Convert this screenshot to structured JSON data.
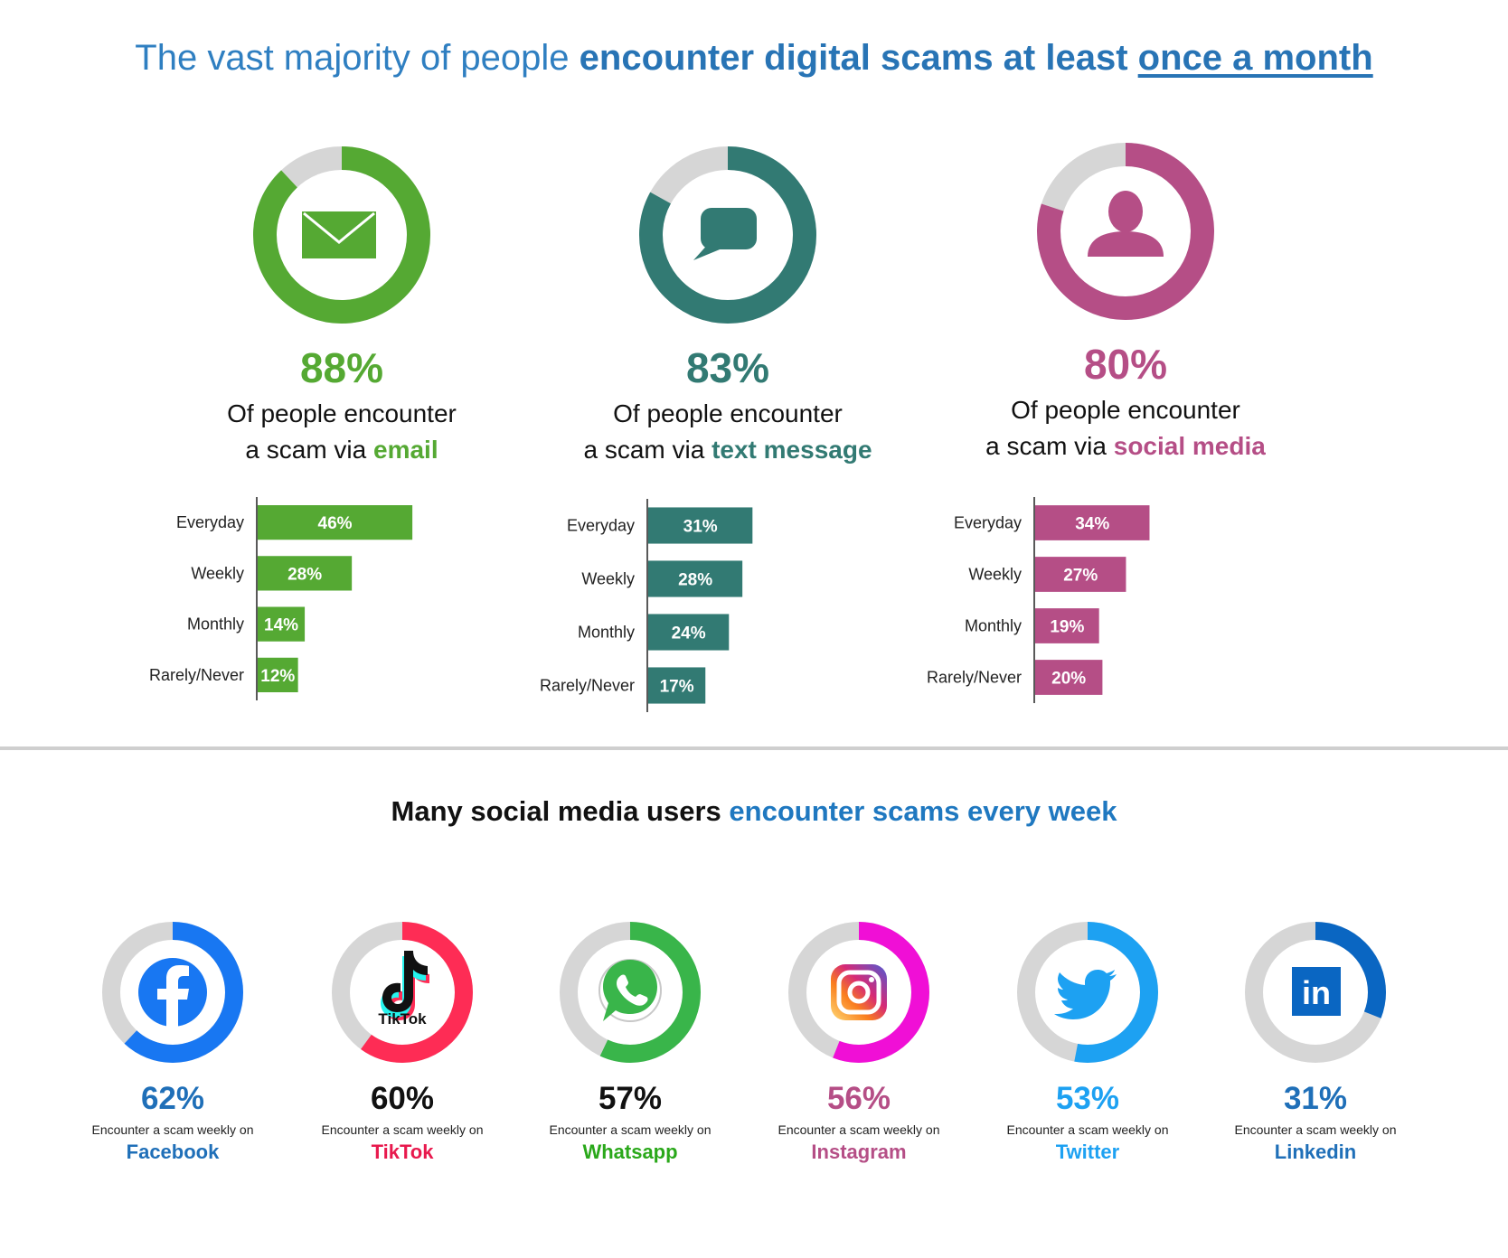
{
  "headline": {
    "lead": "The vast majority of people ",
    "bold": "encounter digital scams at least ",
    "underline": "once a month"
  },
  "subheadline": {
    "lead": "Many social media users ",
    "bold": "encounter scams every week"
  },
  "colors": {
    "email": "#55a933",
    "text": "#327a73",
    "social": "#b54e86",
    "ring_bg": "#d6d6d6"
  },
  "chart_data": [
    {
      "type": "bar",
      "channel": "email",
      "headline_value": "88%",
      "share": 88,
      "caption_line1": "Of people encounter",
      "caption_prefix": "a scam via ",
      "caption_highlight": "email",
      "icon": "envelope-icon",
      "categories": [
        "Everyday",
        "Weekly",
        "Monthly",
        "Rarely/Never"
      ],
      "values": [
        46,
        28,
        14,
        12
      ],
      "labels": [
        "46%",
        "28%",
        "14%",
        "12%"
      ]
    },
    {
      "type": "bar",
      "channel": "text",
      "headline_value": "83%",
      "share": 83,
      "caption_line1": "Of people encounter",
      "caption_prefix": "a scam via ",
      "caption_highlight": "text message",
      "icon": "chat-bubble-icon",
      "categories": [
        "Everyday",
        "Weekly",
        "Monthly",
        "Rarely/Never"
      ],
      "values": [
        31,
        28,
        24,
        17
      ],
      "labels": [
        "31%",
        "28%",
        "24%",
        "17%"
      ]
    },
    {
      "type": "bar",
      "channel": "social",
      "headline_value": "80%",
      "share": 80,
      "caption_line1": "Of people encounter",
      "caption_prefix": "a scam via ",
      "caption_highlight": "social media",
      "icon": "person-icon",
      "categories": [
        "Everyday",
        "Weekly",
        "Monthly",
        "Rarely/Never"
      ],
      "values": [
        34,
        27,
        19,
        20
      ],
      "labels": [
        "34%",
        "27%",
        "19%",
        "20%"
      ]
    },
    {
      "type": "pie",
      "title": "",
      "caption": "Encounter a scam weekly on",
      "series": [
        {
          "platform": "Facebook",
          "value": 62,
          "label": "62%",
          "color": "#1877f2",
          "pct_color": "#1f6fb8",
          "name_color": "#1f6fb8",
          "icon": "facebook-icon"
        },
        {
          "platform": "TikTok",
          "value": 60,
          "label": "60%",
          "color": "#fe2c55",
          "pct_color": "#111111",
          "name_color": "#e8194d",
          "icon": "tiktok-icon"
        },
        {
          "platform": "Whatsapp",
          "value": 57,
          "label": "57%",
          "color": "#39b54a",
          "pct_color": "#111111",
          "name_color": "#2aa81a",
          "icon": "whatsapp-icon"
        },
        {
          "platform": "Instagram",
          "value": 56,
          "label": "56%",
          "color": "#f00fd6",
          "pct_color": "#b54e86",
          "name_color": "#b54e86",
          "icon": "instagram-icon"
        },
        {
          "platform": "Twitter",
          "value": 53,
          "label": "53%",
          "color": "#1da1f2",
          "pct_color": "#1da1f2",
          "name_color": "#1da1f2",
          "icon": "twitter-icon"
        },
        {
          "platform": "Linkedin",
          "value": 31,
          "label": "31%",
          "color": "#0a66c2",
          "pct_color": "#1f6fb8",
          "name_color": "#1f6fb8",
          "icon": "linkedin-icon"
        }
      ]
    }
  ]
}
